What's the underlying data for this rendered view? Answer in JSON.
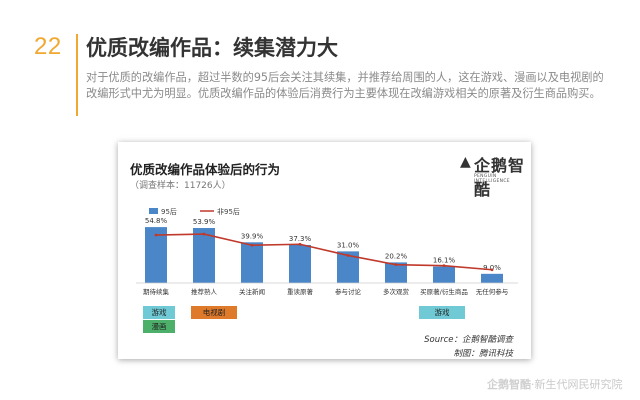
{
  "slide": {
    "number": "22",
    "title": "优质改编作品：续集潜力大",
    "description": "对于优质的改编作品，超过半数的95后会关注其续集，并推荐给周围的人，这在游戏、漫画以及电视剧的改编形式中尤为明显。优质改编作品的体验后消费行为主要体现在改编游戏相关的原著及衍生商品购买。"
  },
  "logo": {
    "name": "企鹅智酷",
    "sub": "PENGUIN INTELLIGENCE"
  },
  "chart_data": {
    "type": "bar",
    "title": "优质改编作品体验后的行为",
    "subtitle": "（调查样本：11726人）",
    "categories": [
      "期待续集",
      "推荐熟人",
      "关注新闻",
      "重读原著",
      "参与讨论",
      "多次观赏",
      "买原著/衍生商品",
      "无任何参与"
    ],
    "series": [
      {
        "name": "95后",
        "type": "bar",
        "color": "#4a86c8",
        "values": [
          54.8,
          53.9,
          39.9,
          37.3,
          31.0,
          20.2,
          16.1,
          9.0
        ],
        "labels": [
          "54.8%",
          "53.9%",
          "39.9%",
          "37.3%",
          "31.0%",
          "20.2%",
          "16.1%",
          "9.0%"
        ]
      },
      {
        "name": "非95后",
        "type": "line",
        "color": "#c0392b",
        "values": [
          47,
          48,
          37,
          38,
          27,
          18,
          17,
          13
        ]
      }
    ],
    "ylim": [
      0,
      60
    ],
    "legend": "top-left",
    "grid": false
  },
  "tags": [
    {
      "label": "游戏",
      "color": "#6fcad5"
    },
    {
      "label": "电视剧",
      "color": "#e07a2b"
    },
    {
      "label": "漫画",
      "color": "#4caf6a"
    },
    {
      "label": "游戏",
      "color": "#6fcad5"
    }
  ],
  "source": "Source：企鹅智酷调查",
  "maker": "制图：腾讯科技",
  "footer": {
    "logo": "企鹅智酷",
    "text": "·新生代网民研究院"
  }
}
